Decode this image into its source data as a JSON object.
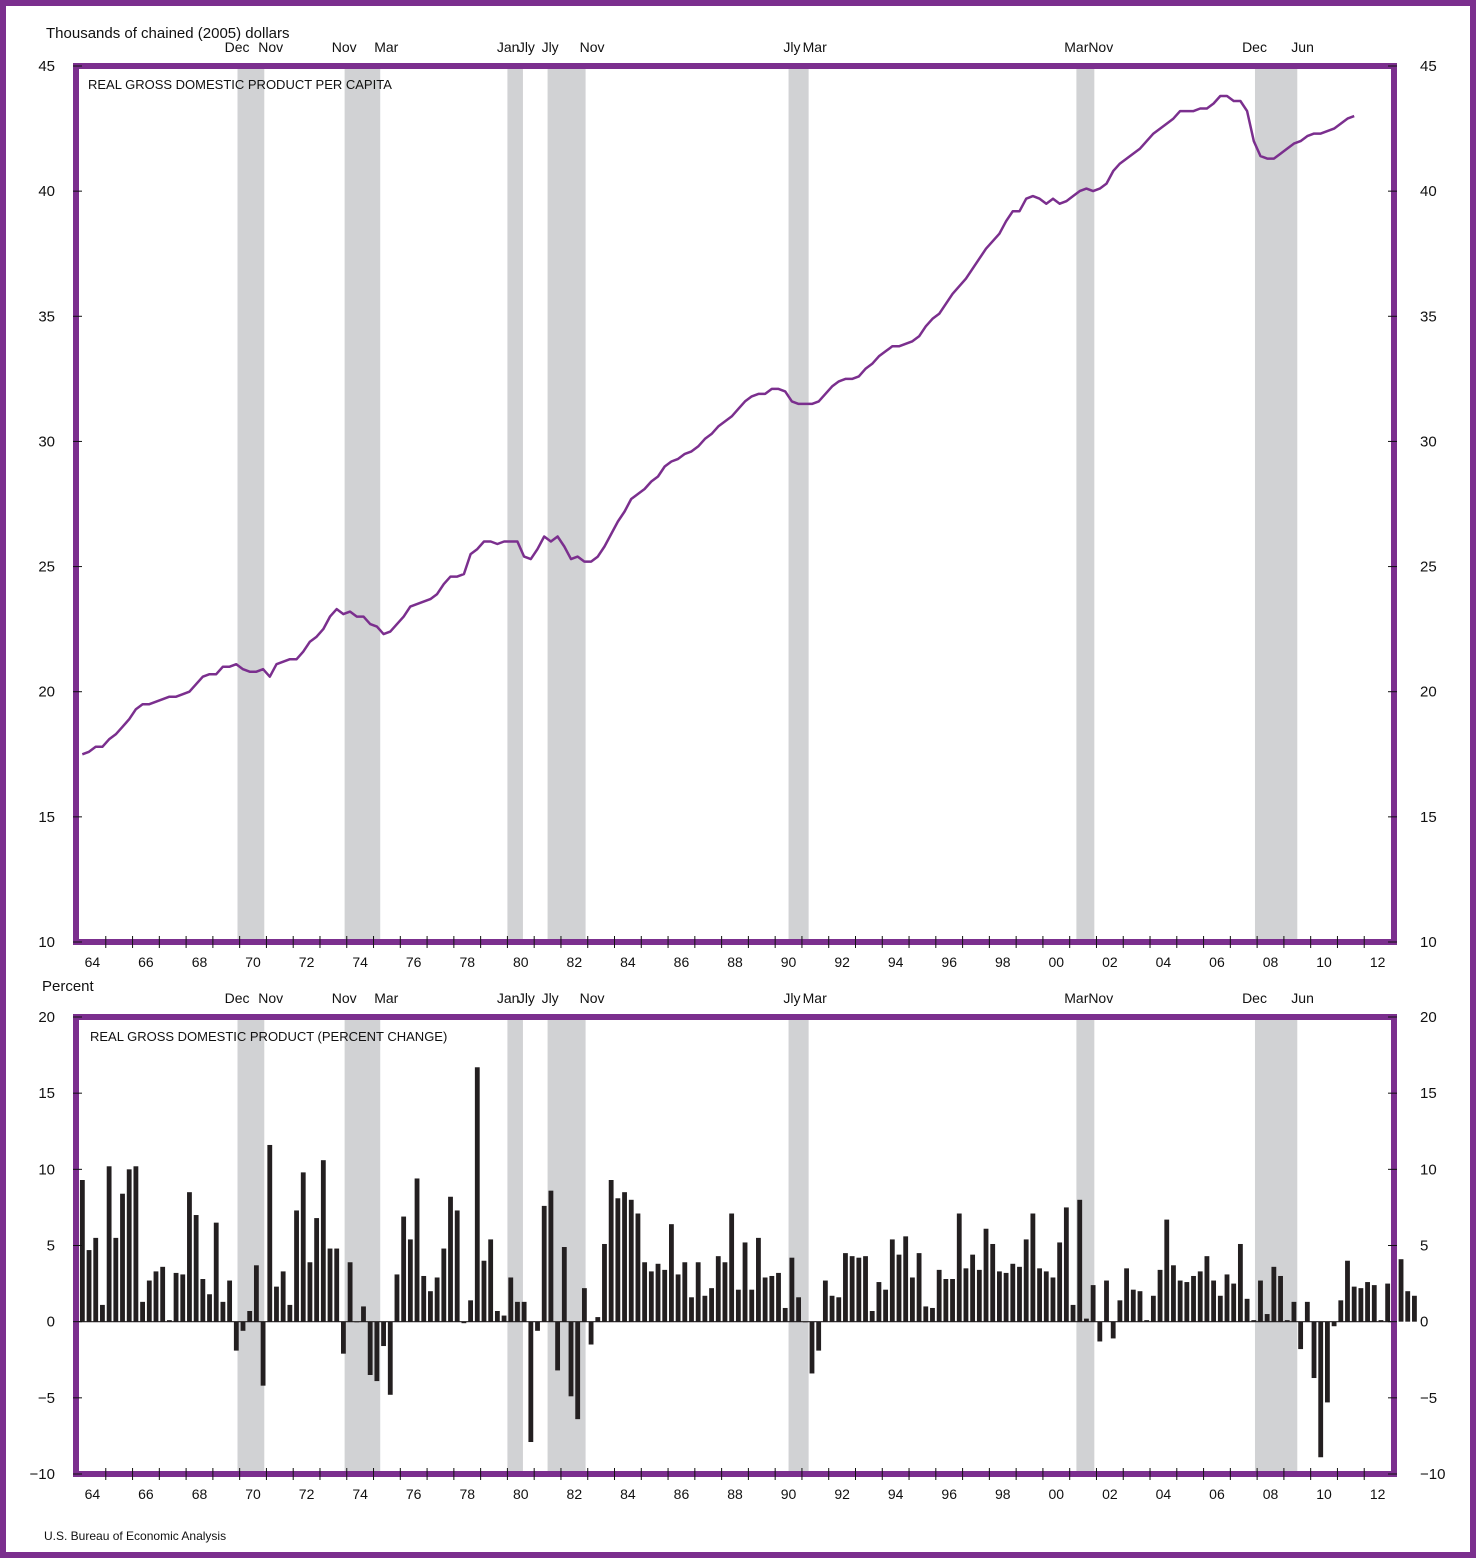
{
  "colors": {
    "frame": "#7b2f8e",
    "line": "#7b2f8e",
    "bars": "#231f20",
    "recession": "#d1d2d4"
  },
  "source": "U.S. Bureau of Economic Analysis",
  "year_labels": [
    "64",
    "66",
    "68",
    "70",
    "72",
    "74",
    "76",
    "78",
    "80",
    "82",
    "84",
    "86",
    "88",
    "90",
    "92",
    "94",
    "96",
    "98",
    "00",
    "02",
    "04",
    "06",
    "08",
    "10",
    "12"
  ],
  "month_labels": [
    "Dec",
    "Nov",
    "Nov",
    "Mar",
    "Jan",
    "Jly",
    "Jly",
    "Nov",
    "Jly",
    "Mar",
    "Mar",
    "Nov",
    "Dec",
    "Jun"
  ],
  "chart_data": [
    {
      "type": "line",
      "title": "REAL GROSS DOMESTIC PRODUCT PER CAPITA",
      "ylabel": "Thousands of chained (2005) dollars",
      "ylim": [
        10,
        45
      ],
      "yticks": [
        10,
        15,
        20,
        25,
        30,
        35,
        40,
        45
      ],
      "x_start": 1964.0,
      "x_step": 0.25,
      "recessions": [
        [
          1969.92,
          1970.92
        ],
        [
          1973.92,
          1975.25
        ],
        [
          1980.0,
          1980.58
        ],
        [
          1981.5,
          1982.92
        ],
        [
          1990.5,
          1991.25
        ],
        [
          2001.25,
          2001.92
        ],
        [
          2007.92,
          2009.5
        ]
      ],
      "series": [
        {
          "values": [
            17.5,
            17.6,
            17.8,
            17.8,
            18.1,
            18.3,
            18.6,
            18.9,
            19.3,
            19.5,
            19.5,
            19.6,
            19.7,
            19.8,
            19.8,
            19.9,
            20.0,
            20.3,
            20.6,
            20.7,
            20.7,
            21.0,
            21.0,
            21.1,
            20.9,
            20.8,
            20.8,
            20.9,
            20.6,
            21.1,
            21.2,
            21.3,
            21.3,
            21.6,
            22.0,
            22.2,
            22.5,
            23.0,
            23.3,
            23.1,
            23.2,
            23.0,
            23.0,
            22.7,
            22.6,
            22.3,
            22.4,
            22.7,
            23.0,
            23.4,
            23.5,
            23.6,
            23.7,
            23.9,
            24.3,
            24.6,
            24.6,
            24.7,
            25.5,
            25.7,
            26.0,
            26.0,
            25.9,
            26.0,
            26.0,
            26.0,
            25.4,
            25.3,
            25.7,
            26.2,
            26.0,
            26.2,
            25.8,
            25.3,
            25.4,
            25.2,
            25.2,
            25.4,
            25.8,
            26.3,
            26.8,
            27.2,
            27.7,
            27.9,
            28.1,
            28.4,
            28.6,
            29.0,
            29.2,
            29.3,
            29.5,
            29.6,
            29.8,
            30.1,
            30.3,
            30.6,
            30.8,
            31.0,
            31.3,
            31.6,
            31.8,
            31.9,
            31.9,
            32.1,
            32.1,
            32.0,
            31.6,
            31.5,
            31.5,
            31.5,
            31.6,
            31.9,
            32.2,
            32.4,
            32.5,
            32.5,
            32.6,
            32.9,
            33.1,
            33.4,
            33.6,
            33.8,
            33.8,
            33.9,
            34.0,
            34.2,
            34.6,
            34.9,
            35.1,
            35.5,
            35.9,
            36.2,
            36.5,
            36.9,
            37.3,
            37.7,
            38.0,
            38.3,
            38.8,
            39.2,
            39.2,
            39.7,
            39.8,
            39.7,
            39.5,
            39.7,
            39.5,
            39.6,
            39.8,
            40.0,
            40.1,
            40.0,
            40.1,
            40.3,
            40.8,
            41.1,
            41.3,
            41.5,
            41.7,
            42.0,
            42.3,
            42.5,
            42.7,
            42.9,
            43.2,
            43.2,
            43.2,
            43.3,
            43.3,
            43.5,
            43.8,
            43.8,
            43.6,
            43.6,
            43.2,
            42.0,
            41.4,
            41.3,
            41.3,
            41.5,
            41.7,
            41.9,
            42.0,
            42.2,
            42.3,
            42.3,
            42.4,
            42.5,
            42.7,
            42.9,
            43.0
          ]
        }
      ]
    },
    {
      "type": "bar",
      "title": "REAL GROSS DOMESTIC PRODUCT (PERCENT CHANGE)",
      "ylabel": "Percent",
      "ylim": [
        -10,
        20
      ],
      "yticks": [
        -10,
        -5,
        0,
        5,
        10,
        15,
        20
      ],
      "x_start": 1964.0,
      "x_step": 0.25,
      "recessions": [
        [
          1969.92,
          1970.92
        ],
        [
          1973.92,
          1975.25
        ],
        [
          1980.0,
          1980.58
        ],
        [
          1981.5,
          1982.92
        ],
        [
          1990.5,
          1991.25
        ],
        [
          2001.25,
          2001.92
        ],
        [
          2007.92,
          2009.5
        ]
      ],
      "series": [
        {
          "values": [
            9.3,
            4.7,
            5.5,
            1.1,
            10.2,
            5.5,
            8.4,
            10.0,
            10.2,
            1.3,
            2.7,
            3.3,
            3.6,
            0.1,
            3.2,
            3.1,
            8.5,
            7.0,
            2.8,
            1.8,
            6.5,
            1.3,
            2.7,
            -1.9,
            -0.6,
            0.7,
            3.7,
            -4.2,
            11.6,
            2.3,
            3.3,
            1.1,
            7.3,
            9.8,
            3.9,
            6.8,
            10.6,
            4.8,
            4.8,
            -2.1,
            3.9,
            0.0,
            1.0,
            -3.5,
            -3.9,
            -1.6,
            -4.8,
            3.1,
            6.9,
            5.4,
            9.4,
            3.0,
            2.0,
            2.9,
            4.8,
            8.2,
            7.3,
            -0.1,
            1.4,
            16.7,
            4.0,
            5.4,
            0.7,
            0.4,
            2.9,
            1.3,
            1.3,
            -7.9,
            -0.6,
            7.6,
            8.6,
            -3.2,
            4.9,
            -4.9,
            -6.4,
            2.2,
            -1.5,
            0.3,
            5.1,
            9.3,
            8.1,
            8.5,
            8.0,
            7.1,
            3.9,
            3.3,
            3.8,
            3.4,
            6.4,
            3.1,
            3.9,
            1.6,
            3.9,
            1.7,
            2.2,
            4.3,
            3.9,
            7.1,
            2.1,
            5.2,
            2.1,
            5.5,
            2.9,
            3.0,
            3.2,
            0.9,
            4.2,
            1.6,
            0.0,
            -3.4,
            -1.9,
            2.7,
            1.7,
            1.6,
            4.5,
            4.3,
            4.2,
            4.3,
            0.7,
            2.6,
            2.1,
            5.4,
            4.4,
            5.6,
            2.9,
            4.5,
            1.0,
            0.9,
            3.4,
            2.8,
            2.8,
            7.1,
            3.5,
            4.4,
            3.4,
            6.1,
            5.1,
            3.3,
            3.2,
            3.8,
            3.6,
            5.4,
            7.1,
            3.5,
            3.3,
            2.9,
            5.2,
            7.5,
            1.1,
            8.0,
            0.2,
            2.4,
            -1.3,
            2.7,
            -1.1,
            1.4,
            3.5,
            2.1,
            2.0,
            0.1,
            1.7,
            3.4,
            6.7,
            3.7,
            2.7,
            2.6,
            3.0,
            3.3,
            4.3,
            2.7,
            1.7,
            3.1,
            2.5,
            5.1,
            1.5,
            0.1,
            2.7,
            0.5,
            3.6,
            3.0,
            0.1,
            1.3,
            -1.8,
            1.3,
            -3.7,
            -8.9,
            -5.3,
            -0.3,
            1.4,
            4.0,
            2.3,
            2.2,
            2.6,
            2.4,
            0.1,
            2.5,
            1.3,
            4.1,
            2.0,
            1.7
          ]
        }
      ]
    }
  ]
}
